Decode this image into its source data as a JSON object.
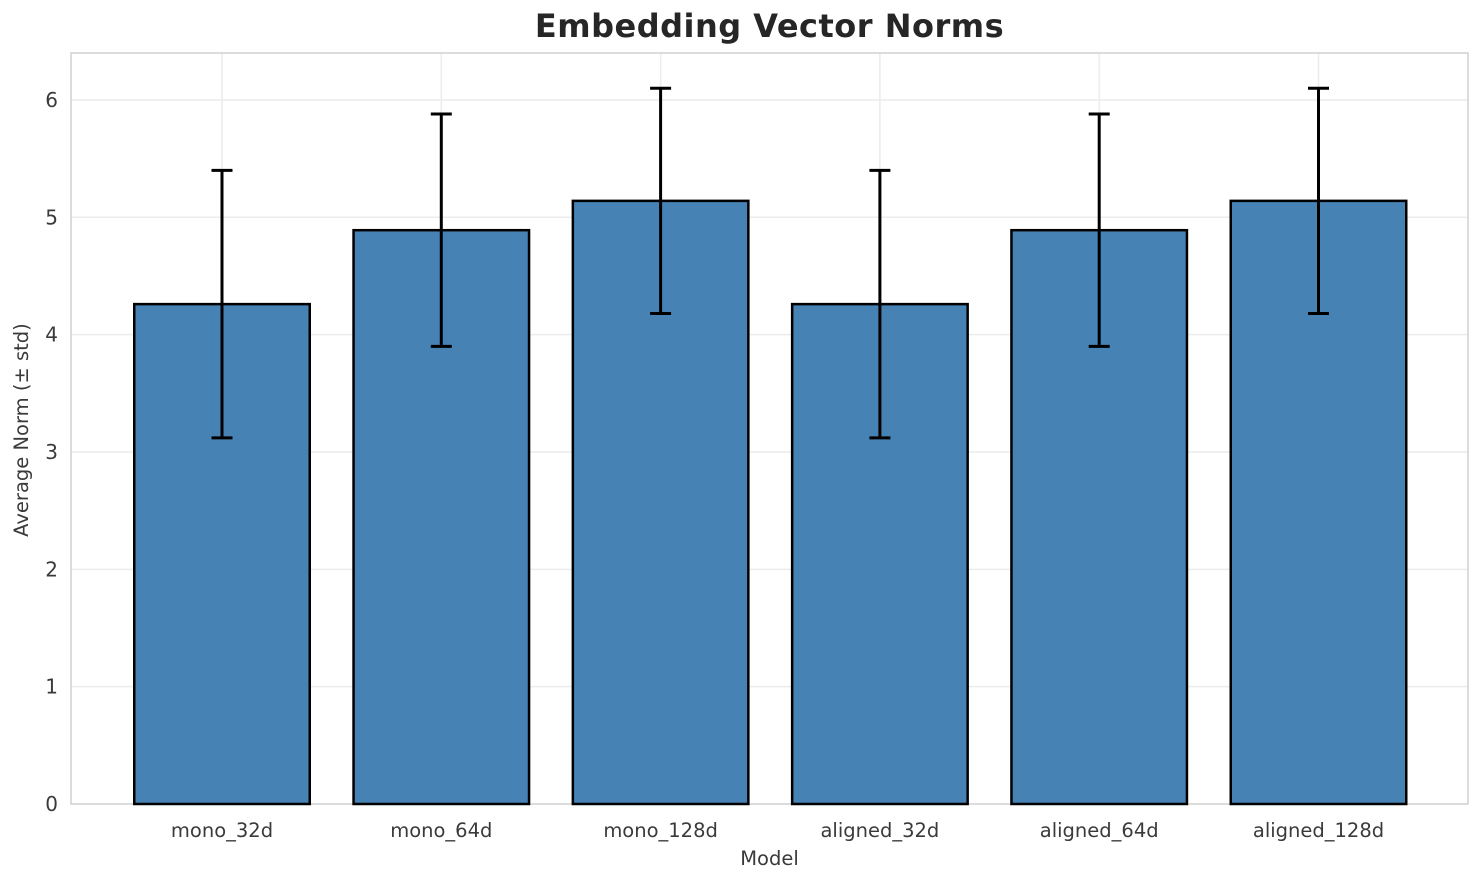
{
  "chart_data": {
    "type": "bar",
    "title": "Embedding Vector Norms",
    "xlabel": "Model",
    "ylabel": "Average Norm (± std)",
    "categories": [
      "mono_32d",
      "mono_64d",
      "mono_128d",
      "aligned_32d",
      "aligned_64d",
      "aligned_128d"
    ],
    "series": [
      {
        "name": "Average Norm",
        "values": [
          4.26,
          4.89,
          5.14,
          4.26,
          4.89,
          5.14
        ],
        "errors": [
          1.14,
          0.99,
          0.96,
          1.14,
          0.99,
          0.96
        ]
      }
    ],
    "ylim": [
      0,
      6.4
    ],
    "yticks": [
      0,
      1,
      2,
      3,
      4,
      5,
      6
    ],
    "grid": true,
    "legend": "none",
    "colors": {
      "bar_fill": "#4682b4",
      "bar_edge": "#000000",
      "error_bar": "#000000",
      "grid_line": "#ececec",
      "frame": "#d0d0d0",
      "tick_text": "#3a3a3a",
      "title_text": "#262626",
      "background": "#ffffff"
    }
  }
}
